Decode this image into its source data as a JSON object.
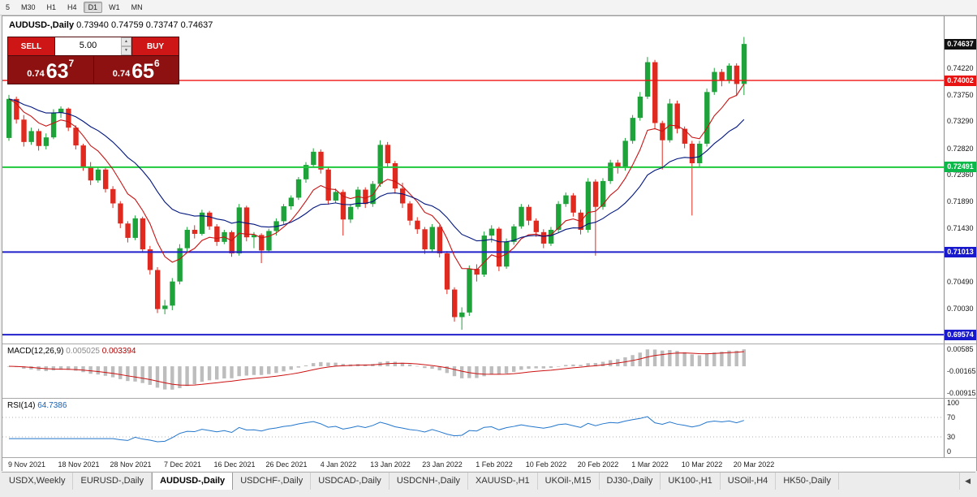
{
  "toolbar": {
    "timeframes": [
      "5",
      "M30",
      "H1",
      "H4",
      "D1",
      "W1",
      "MN"
    ],
    "active": "D1"
  },
  "chart_header": {
    "symbol": "AUDUSD-,Daily",
    "ohlc": "0.73940 0.74759 0.73747 0.74637"
  },
  "trade_panel": {
    "sell_label": "SELL",
    "buy_label": "BUY",
    "volume": "5.00",
    "sell_price": {
      "prefix": "0.74",
      "big": "63",
      "sup": "7"
    },
    "buy_price": {
      "prefix": "0.74",
      "big": "65",
      "sup": "6"
    },
    "up_arrow": "▲",
    "down_arrow": "▼"
  },
  "chart_data": {
    "type": "candlestick",
    "symbol": "AUDUSD",
    "timeframe": "Daily",
    "last_ohlc": {
      "open": 0.7394,
      "high": 0.74759,
      "low": 0.73747,
      "close": 0.74637
    },
    "scale": {
      "p_max": 0.7512,
      "p_min": 0.6942
    },
    "colors": {
      "up": "#1ea23a",
      "down": "#e02a20",
      "ma_fast": "#c81414",
      "ma_slow": "#00157e",
      "macd_hist": "#bdbdbd",
      "macd_signal": "#cc1111",
      "rsi_line": "#2276cc"
    },
    "ma_periods": {
      "fast": 8,
      "slow": 21
    },
    "candles": [
      [
        0.73,
        0.7375,
        0.7295,
        0.7368
      ],
      [
        0.7368,
        0.7372,
        0.7325,
        0.7332
      ],
      [
        0.7332,
        0.734,
        0.7285,
        0.7293
      ],
      [
        0.7293,
        0.7318,
        0.7288,
        0.7312
      ],
      [
        0.7312,
        0.7316,
        0.7278,
        0.7286
      ],
      [
        0.7286,
        0.7308,
        0.728,
        0.7301
      ],
      [
        0.7301,
        0.735,
        0.7298,
        0.7344
      ],
      [
        0.7344,
        0.7355,
        0.7335,
        0.7351
      ],
      [
        0.7351,
        0.7353,
        0.7312,
        0.7318
      ],
      [
        0.7318,
        0.7322,
        0.728,
        0.7287
      ],
      [
        0.7287,
        0.729,
        0.7243,
        0.725
      ],
      [
        0.725,
        0.7258,
        0.7218,
        0.7226
      ],
      [
        0.7226,
        0.725,
        0.7222,
        0.7245
      ],
      [
        0.7245,
        0.7248,
        0.7205,
        0.7211
      ],
      [
        0.7211,
        0.7216,
        0.7178,
        0.7186
      ],
      [
        0.7186,
        0.719,
        0.7143,
        0.7151
      ],
      [
        0.7151,
        0.7155,
        0.7118,
        0.7126
      ],
      [
        0.7126,
        0.7165,
        0.7122,
        0.716
      ],
      [
        0.716,
        0.7163,
        0.71,
        0.7106
      ],
      [
        0.7106,
        0.7112,
        0.7062,
        0.707
      ],
      [
        0.707,
        0.7075,
        0.6995,
        0.7002
      ],
      [
        0.7002,
        0.7018,
        0.6993,
        0.7008
      ],
      [
        0.7008,
        0.7056,
        0.7,
        0.705
      ],
      [
        0.705,
        0.7115,
        0.7045,
        0.7108
      ],
      [
        0.7108,
        0.7145,
        0.7102,
        0.714
      ],
      [
        0.714,
        0.7148,
        0.7125,
        0.7133
      ],
      [
        0.7133,
        0.7175,
        0.713,
        0.717
      ],
      [
        0.717,
        0.7173,
        0.714,
        0.7146
      ],
      [
        0.7146,
        0.715,
        0.7112,
        0.7119
      ],
      [
        0.7119,
        0.714,
        0.7115,
        0.7136
      ],
      [
        0.7136,
        0.7139,
        0.7093,
        0.7099
      ],
      [
        0.7099,
        0.7185,
        0.7095,
        0.7179
      ],
      [
        0.7179,
        0.7182,
        0.712,
        0.7127
      ],
      [
        0.7127,
        0.7136,
        0.7108,
        0.7131
      ],
      [
        0.7131,
        0.7134,
        0.7082,
        0.7104
      ],
      [
        0.7104,
        0.7142,
        0.71,
        0.7138
      ],
      [
        0.7138,
        0.716,
        0.713,
        0.7155
      ],
      [
        0.7155,
        0.7185,
        0.715,
        0.7181
      ],
      [
        0.7181,
        0.72,
        0.7175,
        0.7196
      ],
      [
        0.7196,
        0.7232,
        0.7192,
        0.7228
      ],
      [
        0.7228,
        0.7258,
        0.7222,
        0.7253
      ],
      [
        0.7253,
        0.7282,
        0.7248,
        0.7276
      ],
      [
        0.7276,
        0.728,
        0.7238,
        0.7245
      ],
      [
        0.7245,
        0.725,
        0.7184,
        0.7191
      ],
      [
        0.7191,
        0.7212,
        0.7186,
        0.7206
      ],
      [
        0.7206,
        0.721,
        0.713,
        0.7158
      ],
      [
        0.7158,
        0.7185,
        0.7152,
        0.718
      ],
      [
        0.718,
        0.7215,
        0.7176,
        0.721
      ],
      [
        0.721,
        0.7214,
        0.7178,
        0.7185
      ],
      [
        0.7185,
        0.7225,
        0.718,
        0.722
      ],
      [
        0.722,
        0.7296,
        0.7215,
        0.7288
      ],
      [
        0.7288,
        0.7293,
        0.7248,
        0.7256
      ],
      [
        0.7256,
        0.726,
        0.7203,
        0.7212
      ],
      [
        0.7212,
        0.7222,
        0.7178,
        0.7186
      ],
      [
        0.7186,
        0.719,
        0.7148,
        0.7156
      ],
      [
        0.7156,
        0.7162,
        0.7133,
        0.7141
      ],
      [
        0.7141,
        0.7145,
        0.7098,
        0.7106
      ],
      [
        0.7106,
        0.715,
        0.7102,
        0.7145
      ],
      [
        0.7145,
        0.7148,
        0.7092,
        0.7099
      ],
      [
        0.7099,
        0.7103,
        0.7028,
        0.7036
      ],
      [
        0.7036,
        0.704,
        0.698,
        0.6988
      ],
      [
        0.6988,
        0.7005,
        0.6966,
        0.6996
      ],
      [
        0.6996,
        0.7078,
        0.699,
        0.7072
      ],
      [
        0.7072,
        0.708,
        0.705,
        0.7062
      ],
      [
        0.7062,
        0.7137,
        0.7058,
        0.713
      ],
      [
        0.713,
        0.7148,
        0.7118,
        0.7142
      ],
      [
        0.7142,
        0.7145,
        0.7068,
        0.7076
      ],
      [
        0.7076,
        0.7125,
        0.7072,
        0.7119
      ],
      [
        0.7119,
        0.715,
        0.7114,
        0.7146
      ],
      [
        0.7146,
        0.7185,
        0.7142,
        0.718
      ],
      [
        0.718,
        0.7184,
        0.7148,
        0.7156
      ],
      [
        0.7156,
        0.716,
        0.7128,
        0.7136
      ],
      [
        0.7136,
        0.7141,
        0.7108,
        0.7116
      ],
      [
        0.7116,
        0.7145,
        0.7112,
        0.714
      ],
      [
        0.714,
        0.719,
        0.7136,
        0.7185
      ],
      [
        0.7185,
        0.7205,
        0.718,
        0.72
      ],
      [
        0.72,
        0.7204,
        0.7163,
        0.717
      ],
      [
        0.717,
        0.7175,
        0.7132,
        0.714
      ],
      [
        0.714,
        0.723,
        0.7135,
        0.7224
      ],
      [
        0.7224,
        0.7228,
        0.7095,
        0.718
      ],
      [
        0.718,
        0.723,
        0.7175,
        0.7225
      ],
      [
        0.7225,
        0.7262,
        0.722,
        0.7257
      ],
      [
        0.7257,
        0.7262,
        0.7238,
        0.7248
      ],
      [
        0.7248,
        0.73,
        0.7243,
        0.7295
      ],
      [
        0.7295,
        0.734,
        0.729,
        0.7335
      ],
      [
        0.7335,
        0.738,
        0.733,
        0.7372
      ],
      [
        0.7372,
        0.7441,
        0.7368,
        0.7432
      ],
      [
        0.7432,
        0.7436,
        0.7315,
        0.7326
      ],
      [
        0.7326,
        0.733,
        0.7245,
        0.7296
      ],
      [
        0.7296,
        0.7368,
        0.7292,
        0.736
      ],
      [
        0.736,
        0.7365,
        0.7308,
        0.7316
      ],
      [
        0.7316,
        0.732,
        0.7282,
        0.729
      ],
      [
        0.729,
        0.7295,
        0.7165,
        0.7256
      ],
      [
        0.7256,
        0.7295,
        0.725,
        0.729
      ],
      [
        0.729,
        0.7386,
        0.7285,
        0.738
      ],
      [
        0.738,
        0.7422,
        0.7375,
        0.7415
      ],
      [
        0.7415,
        0.742,
        0.739,
        0.74
      ],
      [
        0.74,
        0.743,
        0.7395,
        0.7426
      ],
      [
        0.7426,
        0.743,
        0.7373,
        0.7394
      ],
      [
        0.7394,
        0.74759,
        0.73747,
        0.74637
      ]
    ],
    "hlines": [
      {
        "price": 0.74002,
        "color": "#f01414",
        "width": 1.4
      },
      {
        "price": 0.72491,
        "color": "#1fc93c",
        "width": 2
      },
      {
        "price": 0.71013,
        "color": "#2020cc",
        "width": 2
      },
      {
        "price": 0.69574,
        "color": "#2020cc",
        "width": 2
      }
    ],
    "price_axis": {
      "labels": [
        "0.74220",
        "0.73750",
        "0.73290",
        "0.72820",
        "0.72360",
        "0.71890",
        "0.71430",
        "0.70960",
        "0.70490",
        "0.70030",
        "0.69560"
      ],
      "badges": [
        {
          "price": 0.74637,
          "label": "0.74637",
          "color": "#101010"
        },
        {
          "price": 0.74002,
          "label": "0.74002",
          "color": "#e81414"
        },
        {
          "price": 0.72491,
          "label": "0.72491",
          "color": "#0cb84a"
        },
        {
          "price": 0.71013,
          "label": "0.71013",
          "color": "#1818cc"
        },
        {
          "price": 0.69574,
          "label": "0.69574",
          "color": "#1818cc"
        }
      ]
    },
    "macd": {
      "label": "MACD(12,26,9)",
      "value_main": "0.005025",
      "value_signal": "0.003394",
      "fast": 12,
      "slow": 26,
      "signal": 9,
      "range": {
        "max": 0.0075,
        "min": -0.0108
      },
      "axis": [
        {
          "v": 0.00585,
          "label": "0.00585"
        },
        {
          "v": -0.00165,
          "label": "-0.00165"
        },
        {
          "v": -0.00915,
          "label": "-0.00915"
        }
      ]
    },
    "rsi": {
      "label": "RSI(14)",
      "value": "64.7386",
      "period": 14,
      "levels": [
        70,
        30
      ],
      "axis": [
        {
          "v": 100,
          "label": "100"
        },
        {
          "v": 70,
          "label": "70"
        },
        {
          "v": 30,
          "label": "30"
        },
        {
          "v": 0,
          "label": "0"
        }
      ]
    },
    "time_axis": [
      "9 Nov 2021",
      "18 Nov 2021",
      "28 Nov 2021",
      "7 Dec 2021",
      "16 Dec 2021",
      "26 Dec 2021",
      "4 Jan 2022",
      "13 Jan 2022",
      "23 Jan 2022",
      "1 Feb 2022",
      "10 Feb 2022",
      "20 Feb 2022",
      "1 Mar 2022",
      "10 Mar 2022",
      "20 Mar 2022"
    ]
  },
  "tabs": {
    "items": [
      "USDX,Weekly",
      "EURUSD-,Daily",
      "AUDUSD-,Daily",
      "USDCHF-,Daily",
      "USDCAD-,Daily",
      "USDCNH-,Daily",
      "XAUUSD-,H1",
      "UKOil-,M15",
      "DJ30-,Daily",
      "UK100-,H1",
      "USOil-,H4",
      "HK50-,Daily"
    ],
    "active_index": 2,
    "scroll_left": "◀"
  }
}
